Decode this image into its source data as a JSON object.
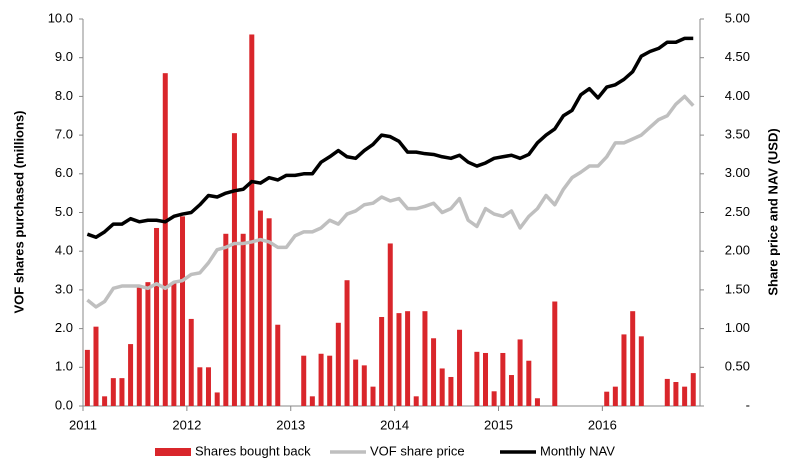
{
  "chart_data": {
    "type": "bar_line",
    "xlim": [
      2011,
      2016.94
    ],
    "xticks": [
      2011,
      2012,
      2013,
      2014,
      2015,
      2016
    ],
    "ylim": [
      0,
      10
    ],
    "yticks": [
      {
        "value": 0,
        "label": "0.0"
      },
      {
        "value": 1,
        "label": "1.0"
      },
      {
        "value": 2,
        "label": "2.0"
      },
      {
        "value": 3,
        "label": "3.0"
      },
      {
        "value": 4,
        "label": "4.0"
      },
      {
        "value": 5,
        "label": "5.0"
      },
      {
        "value": 6,
        "label": "6.0"
      },
      {
        "value": 7,
        "label": "7.0"
      },
      {
        "value": 8,
        "label": "8.0"
      },
      {
        "value": 9,
        "label": "9.0"
      },
      {
        "value": 10,
        "label": "10.0"
      }
    ],
    "y2lim": [
      0,
      5
    ],
    "y2ticks": [
      {
        "value": 0,
        "label": "-"
      },
      {
        "value": 0.5,
        "label": "0.50"
      },
      {
        "value": 1,
        "label": "1.00"
      },
      {
        "value": 1.5,
        "label": "1.50"
      },
      {
        "value": 2,
        "label": "2.00"
      },
      {
        "value": 2.5,
        "label": "2.50"
      },
      {
        "value": 3,
        "label": "3.00"
      },
      {
        "value": 3.5,
        "label": "3.50"
      },
      {
        "value": 4,
        "label": "4.00"
      },
      {
        "value": 4.5,
        "label": "4.50"
      },
      {
        "value": 5,
        "label": "5.00"
      }
    ],
    "ylabel": "VOF shares purchased (millions)",
    "y2label": "Share price and NAV (USD)",
    "x": [
      2011.042,
      2011.125,
      2011.208,
      2011.292,
      2011.375,
      2011.458,
      2011.542,
      2011.625,
      2011.708,
      2011.792,
      2011.875,
      2011.958,
      2012.042,
      2012.125,
      2012.208,
      2012.292,
      2012.375,
      2012.458,
      2012.542,
      2012.625,
      2012.708,
      2012.792,
      2012.875,
      2012.958,
      2013.042,
      2013.125,
      2013.208,
      2013.292,
      2013.375,
      2013.458,
      2013.542,
      2013.625,
      2013.708,
      2013.792,
      2013.875,
      2013.958,
      2014.042,
      2014.125,
      2014.208,
      2014.292,
      2014.375,
      2014.458,
      2014.542,
      2014.625,
      2014.708,
      2014.792,
      2014.875,
      2014.958,
      2015.042,
      2015.125,
      2015.208,
      2015.292,
      2015.375,
      2015.458,
      2015.542,
      2015.625,
      2015.708,
      2015.792,
      2015.875,
      2015.958,
      2016.042,
      2016.125,
      2016.208,
      2016.292,
      2016.375,
      2016.458,
      2016.542,
      2016.625,
      2016.708,
      2016.792,
      2016.875
    ],
    "series": [
      {
        "name": "Shares bought back",
        "type": "bar",
        "color": "#d9262b",
        "values": [
          1.45,
          2.05,
          0.25,
          0.72,
          0.72,
          1.6,
          3.1,
          3.2,
          4.6,
          8.6,
          3.2,
          4.9,
          2.25,
          1.0,
          1.0,
          0.35,
          4.45,
          7.05,
          4.45,
          9.6,
          5.05,
          4.85,
          2.1,
          0,
          0,
          1.3,
          0.25,
          1.35,
          1.3,
          2.15,
          3.25,
          1.2,
          1.05,
          0.5,
          2.3,
          4.2,
          2.4,
          2.45,
          0.25,
          2.45,
          1.75,
          0.97,
          0.75,
          1.97,
          0,
          1.4,
          1.37,
          0.38,
          1.37,
          0.8,
          1.72,
          1.17,
          0.2,
          0,
          2.7,
          0,
          0,
          0,
          0,
          0,
          0.37,
          0.5,
          1.85,
          2.45,
          1.8,
          0,
          0,
          0.7,
          0.62,
          0.5,
          0.85
        ]
      },
      {
        "name": "VOF share price",
        "type": "line",
        "axis": "y2",
        "color": "#bfbfbf",
        "values": [
          1.37,
          1.28,
          1.35,
          1.52,
          1.55,
          1.55,
          1.55,
          1.52,
          1.58,
          1.52,
          1.6,
          1.62,
          1.7,
          1.72,
          1.85,
          2.02,
          2.05,
          2.1,
          2.1,
          2.12,
          2.15,
          2.12,
          2.05,
          2.05,
          2.2,
          2.25,
          2.25,
          2.3,
          2.4,
          2.35,
          2.48,
          2.52,
          2.6,
          2.62,
          2.7,
          2.65,
          2.68,
          2.55,
          2.55,
          2.58,
          2.62,
          2.5,
          2.55,
          2.68,
          2.4,
          2.32,
          2.55,
          2.48,
          2.45,
          2.52,
          2.3,
          2.45,
          2.55,
          2.72,
          2.6,
          2.8,
          2.95,
          3.02,
          3.1,
          3.1,
          3.22,
          3.4,
          3.4,
          3.45,
          3.5,
          3.6,
          3.7,
          3.75,
          3.9,
          4.0,
          3.88
        ]
      },
      {
        "name": "Monthly NAV",
        "type": "line",
        "axis": "y2",
        "color": "#000000",
        "values": [
          2.22,
          2.18,
          2.25,
          2.35,
          2.35,
          2.42,
          2.38,
          2.4,
          2.4,
          2.38,
          2.45,
          2.48,
          2.5,
          2.6,
          2.72,
          2.7,
          2.75,
          2.78,
          2.8,
          2.9,
          2.88,
          2.95,
          2.92,
          2.98,
          2.98,
          3.0,
          3.0,
          3.15,
          3.22,
          3.3,
          3.22,
          3.2,
          3.3,
          3.38,
          3.5,
          3.48,
          3.42,
          3.28,
          3.28,
          3.26,
          3.25,
          3.22,
          3.2,
          3.24,
          3.15,
          3.1,
          3.14,
          3.2,
          3.22,
          3.24,
          3.2,
          3.25,
          3.4,
          3.5,
          3.58,
          3.75,
          3.82,
          4.02,
          4.1,
          3.98,
          4.12,
          4.15,
          4.22,
          4.32,
          4.52,
          4.58,
          4.62,
          4.7,
          4.7,
          4.75,
          4.75
        ]
      }
    ],
    "legend": "bottom"
  }
}
